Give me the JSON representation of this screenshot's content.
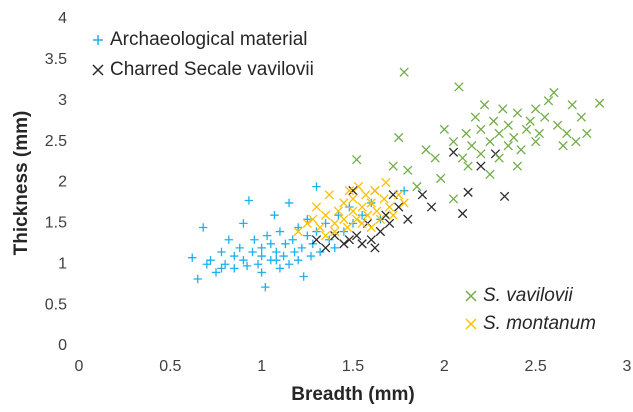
{
  "chart_data": {
    "type": "scatter",
    "x_label": "Breadth (mm)",
    "y_label": "Thickness (mm)",
    "xlim": [
      0,
      3
    ],
    "xticks": [
      0,
      0.5,
      1,
      1.5,
      2,
      2.5,
      3
    ],
    "ylim": [
      0,
      4
    ],
    "yticks": [
      0,
      0.5,
      1,
      1.5,
      2,
      2.5,
      3,
      3.5,
      4
    ],
    "grid": false,
    "series": [
      {
        "name": "Archaeological material",
        "color": "#1fb0ee",
        "marker": "+",
        "legend": "upper left",
        "italic": false,
        "x": [
          0.62,
          0.65,
          0.68,
          0.7,
          0.72,
          0.75,
          0.78,
          0.8,
          0.82,
          0.85,
          0.85,
          0.88,
          0.9,
          0.9,
          0.92,
          0.93,
          0.95,
          0.96,
          0.98,
          1.0,
          1.0,
          1.0,
          1.02,
          1.03,
          1.05,
          1.05,
          1.07,
          1.08,
          1.1,
          1.1,
          1.12,
          1.13,
          1.15,
          1.15,
          1.17,
          1.18,
          1.2,
          1.2,
          1.22,
          1.23,
          1.25,
          1.25,
          1.27,
          1.28,
          1.3,
          1.3,
          1.32,
          1.35,
          1.37,
          1.4,
          1.42,
          1.45,
          1.48,
          1.5,
          1.55,
          1.6,
          1.65,
          1.78,
          0.78,
          1.08
        ],
        "values": [
          1.08,
          0.82,
          1.45,
          1.0,
          1.05,
          0.9,
          1.15,
          1.0,
          1.3,
          1.1,
          0.95,
          1.2,
          1.05,
          1.5,
          0.98,
          1.78,
          1.15,
          1.3,
          1.0,
          1.2,
          0.9,
          1.1,
          0.72,
          1.35,
          1.05,
          1.25,
          1.6,
          1.15,
          0.95,
          1.4,
          1.1,
          1.25,
          1.0,
          1.75,
          1.3,
          1.15,
          1.45,
          1.05,
          1.2,
          0.85,
          1.35,
          1.55,
          1.1,
          1.25,
          1.4,
          1.95,
          1.15,
          1.5,
          1.3,
          1.2,
          1.6,
          1.4,
          1.7,
          1.5,
          1.6,
          1.75,
          1.55,
          1.9,
          0.95,
          1.05
        ]
      },
      {
        "name": "Charred Secale vavilovii",
        "color": "#2b2b2b",
        "marker": "x",
        "legend": "upper left",
        "italic": false,
        "x": [
          1.3,
          1.35,
          1.4,
          1.45,
          1.48,
          1.5,
          1.52,
          1.55,
          1.58,
          1.6,
          1.62,
          1.65,
          1.68,
          1.7,
          1.72,
          1.75,
          1.8,
          1.88,
          1.93,
          2.05,
          2.1,
          2.13,
          2.2,
          2.28,
          2.33
        ],
        "values": [
          1.3,
          1.2,
          1.35,
          1.25,
          1.3,
          1.9,
          1.35,
          1.25,
          1.5,
          1.3,
          1.2,
          1.4,
          1.6,
          1.5,
          1.85,
          1.7,
          1.55,
          1.85,
          1.7,
          2.37,
          1.62,
          1.88,
          2.2,
          2.35,
          1.83
        ]
      },
      {
        "name": "S. vavilovii",
        "color": "#70ad47",
        "marker": "x",
        "legend": "lower right",
        "italic": true,
        "x": [
          1.52,
          1.62,
          1.75,
          1.78,
          1.8,
          1.85,
          1.9,
          1.95,
          1.98,
          2.0,
          2.05,
          2.05,
          2.08,
          2.1,
          2.12,
          2.15,
          2.17,
          2.2,
          2.2,
          2.22,
          2.25,
          2.25,
          2.27,
          2.3,
          2.3,
          2.32,
          2.35,
          2.35,
          2.38,
          2.4,
          2.42,
          2.45,
          2.47,
          2.5,
          2.5,
          2.52,
          2.55,
          2.57,
          2.6,
          2.62,
          2.65,
          2.67,
          2.7,
          2.72,
          2.75,
          2.78,
          2.85,
          1.72,
          2.13,
          2.4
        ],
        "values": [
          2.28,
          1.9,
          2.55,
          3.35,
          2.15,
          1.95,
          2.4,
          2.3,
          2.05,
          2.65,
          1.8,
          2.5,
          3.17,
          2.3,
          2.6,
          2.45,
          2.8,
          2.35,
          2.65,
          2.95,
          2.1,
          2.5,
          2.75,
          2.3,
          2.6,
          2.9,
          2.45,
          2.7,
          2.55,
          2.85,
          2.4,
          2.65,
          2.75,
          2.5,
          2.9,
          2.6,
          2.8,
          3.0,
          3.1,
          2.7,
          2.45,
          2.6,
          2.95,
          2.5,
          2.8,
          2.6,
          2.97,
          2.2,
          2.2,
          2.2
        ]
      },
      {
        "name": "S. montanum",
        "color": "#ffc000",
        "marker": "x",
        "legend": "lower right",
        "italic": true,
        "x": [
          1.2,
          1.25,
          1.28,
          1.3,
          1.32,
          1.35,
          1.37,
          1.4,
          1.42,
          1.45,
          1.45,
          1.47,
          1.5,
          1.5,
          1.52,
          1.53,
          1.55,
          1.55,
          1.57,
          1.58,
          1.6,
          1.6,
          1.62,
          1.63,
          1.65,
          1.67,
          1.68,
          1.7,
          1.72,
          1.75,
          1.78,
          1.48,
          1.4,
          1.35
        ],
        "values": [
          1.4,
          1.5,
          1.55,
          1.7,
          1.45,
          1.6,
          1.85,
          1.5,
          1.65,
          1.55,
          1.75,
          1.45,
          1.65,
          1.8,
          1.55,
          1.95,
          1.7,
          1.5,
          1.85,
          1.6,
          1.75,
          1.45,
          1.9,
          1.65,
          1.55,
          1.8,
          2.0,
          1.7,
          1.6,
          1.85,
          1.75,
          1.9,
          1.4,
          1.35
        ]
      }
    ]
  }
}
